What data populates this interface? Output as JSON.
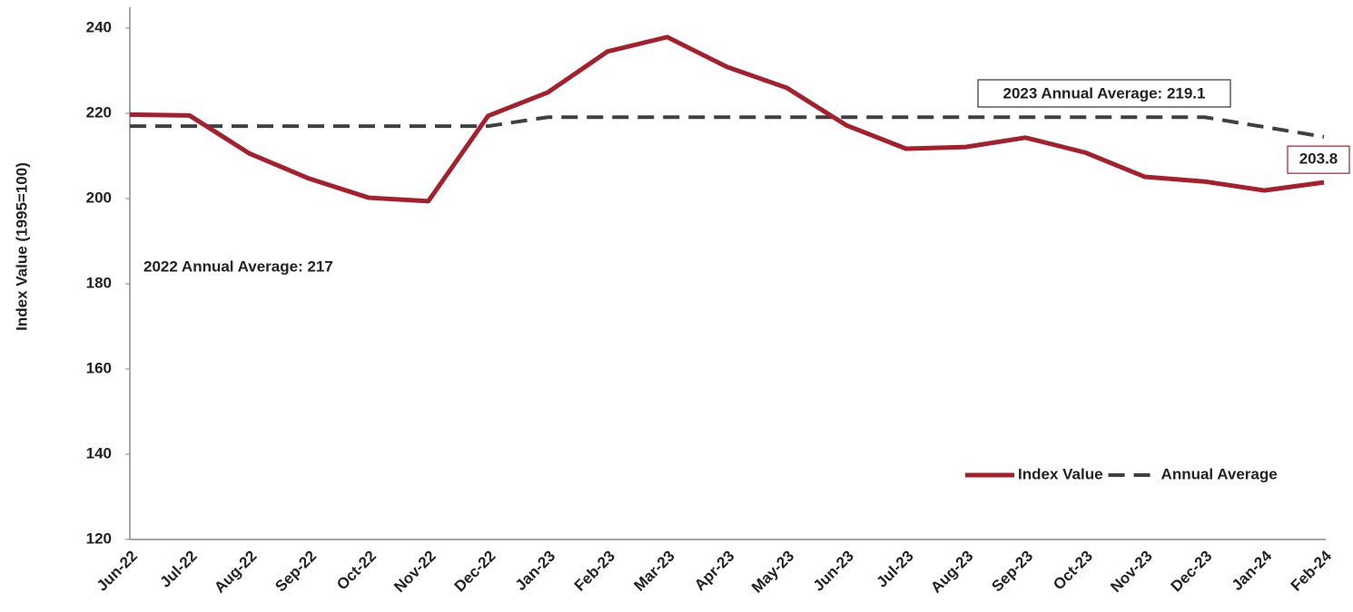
{
  "chart_data": {
    "type": "line",
    "y_label": "Index Value (1995=100)",
    "categories": [
      "Jun-22",
      "Jul-22",
      "Aug-22",
      "Sep-22",
      "Oct-22",
      "Nov-22",
      "Dec-22",
      "Jan-23",
      "Feb-23",
      "Mar-23",
      "Apr-23",
      "May-23",
      "Jun-23",
      "Jul-23",
      "Aug-23",
      "Sep-23",
      "Oct-23",
      "Nov-23",
      "Dec-23",
      "Jan-24",
      "Feb-24"
    ],
    "series": [
      {
        "name": "Index Value",
        "color": "#a51f2d",
        "dashed": false,
        "values": [
          219.7,
          219.5,
          210.6,
          204.7,
          200.2,
          199.4,
          219.4,
          224.9,
          234.5,
          237.9,
          230.9,
          226.0,
          217.2,
          211.7,
          212.1,
          214.3,
          210.8,
          205.1,
          204.0,
          201.9,
          203.8
        ]
      },
      {
        "name": "Annual Average",
        "color": "#404040",
        "dashed": true,
        "values": [
          217,
          217,
          217,
          217,
          217,
          217,
          217,
          219.1,
          219.1,
          219.1,
          219.1,
          219.1,
          219.1,
          219.1,
          219.1,
          219.1,
          219.1,
          219.1,
          219.1,
          216.8,
          214.5
        ]
      }
    ],
    "annotations": [
      "2023 Annual Average: 219.1",
      "2022 Annual Average: 217"
    ],
    "ylim": [
      120,
      240
    ],
    "yticks": [
      120,
      140,
      160,
      180,
      200,
      220,
      240
    ],
    "grid": false,
    "legend": "lower right"
  }
}
